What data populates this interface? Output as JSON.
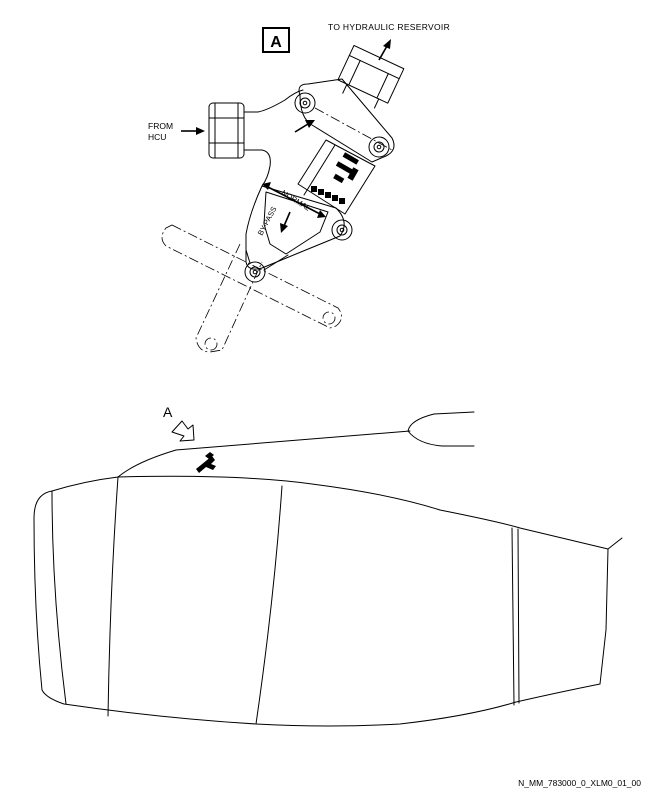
{
  "detail": {
    "callout_letter": "A",
    "label_to_reservoir": "TO HYDRAULIC RESERVOIR",
    "label_from_line1": "FROM",
    "label_from_line2": "HCU",
    "label_normal": "NORMAL",
    "label_bypass": "BY-PASS"
  },
  "view": {
    "callout_letter": "A"
  },
  "footer": {
    "figure_id": "N_MM_783000_0_XLM0_01_00"
  }
}
